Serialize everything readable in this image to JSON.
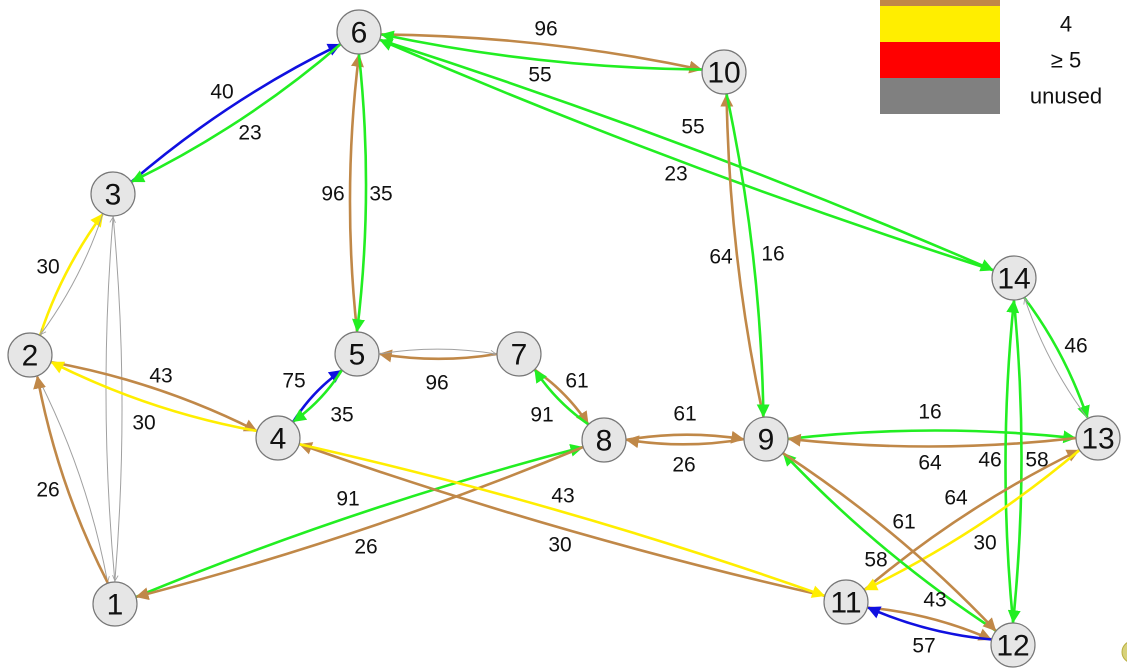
{
  "colors": {
    "blue": "#1010e0",
    "green": "#22ee22",
    "brown": "#c08848",
    "yellow": "#ffee00",
    "red": "#ff0000",
    "gray": "#808080",
    "thin": "#a0a0a0"
  },
  "legend": {
    "entries": [
      {
        "label": "",
        "color": "brown"
      },
      {
        "label": "4",
        "color": "yellow"
      },
      {
        "label": "≥ 5",
        "color": "red"
      },
      {
        "label": "unused",
        "color": "gray"
      }
    ]
  },
  "nodes": [
    {
      "id": "1",
      "label": "1"
    },
    {
      "id": "2",
      "label": "2"
    },
    {
      "id": "3",
      "label": "3"
    },
    {
      "id": "4",
      "label": "4"
    },
    {
      "id": "5",
      "label": "5"
    },
    {
      "id": "6",
      "label": "6"
    },
    {
      "id": "7",
      "label": "7"
    },
    {
      "id": "8",
      "label": "8"
    },
    {
      "id": "9",
      "label": "9"
    },
    {
      "id": "10",
      "label": "10"
    },
    {
      "id": "11",
      "label": "11"
    },
    {
      "id": "12",
      "label": "12"
    },
    {
      "id": "13",
      "label": "13"
    },
    {
      "id": "14",
      "label": "14"
    }
  ],
  "edges": [
    {
      "from": "3",
      "to": "6",
      "color": "blue",
      "label": "40"
    },
    {
      "from": "6",
      "to": "3",
      "color": "green",
      "label": "23"
    },
    {
      "from": "6",
      "to": "10",
      "color": "brown",
      "label": "96"
    },
    {
      "from": "10",
      "to": "6",
      "color": "green",
      "label": "55"
    },
    {
      "from": "14",
      "to": "6",
      "color": "green",
      "label": "55"
    },
    {
      "from": "6",
      "to": "14",
      "color": "green",
      "label": "23"
    },
    {
      "from": "5",
      "to": "6",
      "color": "brown",
      "label": "96"
    },
    {
      "from": "6",
      "to": "5",
      "color": "green",
      "label": "35"
    },
    {
      "from": "2",
      "to": "3",
      "color": "yellow",
      "label": "30"
    },
    {
      "from": "3",
      "to": "2",
      "color": "thin",
      "label": ""
    },
    {
      "from": "1",
      "to": "3",
      "color": "thin",
      "label": ""
    },
    {
      "from": "3",
      "to": "1",
      "color": "thin",
      "label": ""
    },
    {
      "from": "2",
      "to": "1",
      "color": "thin",
      "label": ""
    },
    {
      "from": "1",
      "to": "2",
      "color": "brown",
      "label": "26"
    },
    {
      "from": "2",
      "to": "4",
      "color": "brown",
      "label": "43"
    },
    {
      "from": "4",
      "to": "2",
      "color": "yellow",
      "label": "30"
    },
    {
      "from": "4",
      "to": "5",
      "color": "blue",
      "label": "75"
    },
    {
      "from": "5",
      "to": "4",
      "color": "green",
      "label": "35"
    },
    {
      "from": "7",
      "to": "5",
      "color": "brown",
      "label": "96"
    },
    {
      "from": "5",
      "to": "7",
      "color": "thin",
      "label": ""
    },
    {
      "from": "7",
      "to": "8",
      "color": "brown",
      "label": "61"
    },
    {
      "from": "8",
      "to": "7",
      "color": "green",
      "label": "91"
    },
    {
      "from": "8",
      "to": "9",
      "color": "brown",
      "label": "61"
    },
    {
      "from": "9",
      "to": "8",
      "color": "brown",
      "label": "26"
    },
    {
      "from": "9",
      "to": "10",
      "color": "brown",
      "label": "64"
    },
    {
      "from": "10",
      "to": "9",
      "color": "green",
      "label": "16"
    },
    {
      "from": "1",
      "to": "8",
      "color": "green",
      "label": "91"
    },
    {
      "from": "8",
      "to": "1",
      "color": "brown",
      "label": "26"
    },
    {
      "from": "11",
      "to": "4",
      "color": "brown",
      "label": "43"
    },
    {
      "from": "4",
      "to": "11",
      "color": "yellow",
      "label": "30"
    },
    {
      "from": "9",
      "to": "13",
      "color": "green",
      "label": "16"
    },
    {
      "from": "13",
      "to": "9",
      "color": "brown",
      "label": "64"
    },
    {
      "from": "14",
      "to": "13",
      "color": "green",
      "label": "46"
    },
    {
      "from": "13",
      "to": "14",
      "color": "thin",
      "label": ""
    },
    {
      "from": "14",
      "to": "12",
      "color": "green",
      "label": "46"
    },
    {
      "from": "12",
      "to": "14",
      "color": "green",
      "label": "58"
    },
    {
      "from": "11",
      "to": "13",
      "color": "brown",
      "label": "64"
    },
    {
      "from": "13",
      "to": "11",
      "color": "yellow",
      "label": "30"
    },
    {
      "from": "12",
      "to": "9",
      "color": "green",
      "label": "58"
    },
    {
      "from": "9",
      "to": "12",
      "color": "brown",
      "label": "61"
    },
    {
      "from": "11",
      "to": "12",
      "color": "brown",
      "label": "43"
    },
    {
      "from": "12",
      "to": "11",
      "color": "blue",
      "label": "57"
    }
  ]
}
